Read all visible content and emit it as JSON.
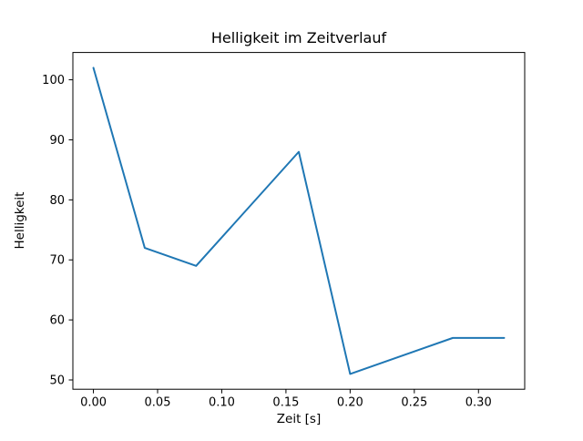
{
  "chart_data": {
    "type": "line",
    "title": "Helligkeit im Zeitverlauf",
    "xlabel": "Zeit [s]",
    "ylabel": "Helligkeit",
    "x": [
      0.0,
      0.04,
      0.08,
      0.16,
      0.2,
      0.28,
      0.32
    ],
    "y": [
      102,
      72,
      69,
      88,
      51,
      57,
      57
    ],
    "xlim": [
      -0.016,
      0.336
    ],
    "ylim": [
      48.45,
      104.55
    ],
    "xticks": [
      0.0,
      0.05,
      0.1,
      0.15,
      0.2,
      0.25,
      0.3
    ],
    "xtick_labels": [
      "0.00",
      "0.05",
      "0.10",
      "0.15",
      "0.20",
      "0.25",
      "0.30"
    ],
    "yticks": [
      50,
      60,
      70,
      80,
      90,
      100
    ],
    "ytick_labels": [
      "50",
      "60",
      "70",
      "80",
      "90",
      "100"
    ],
    "line_color": "#1f77b4",
    "background_color": "#ffffff",
    "grid": false,
    "legend": null
  }
}
